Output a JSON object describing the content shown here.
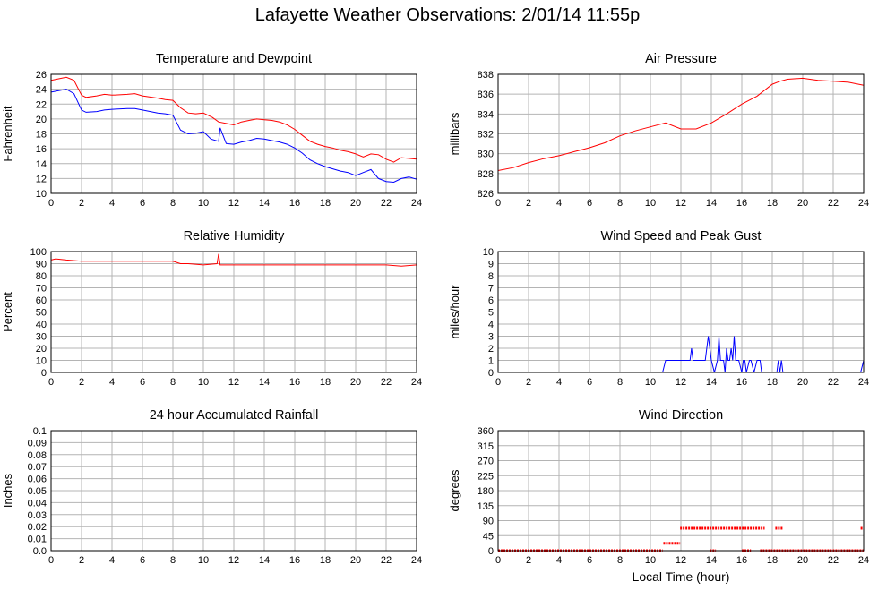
{
  "title": "Lafayette Weather Observations: 2/01/14 11:55p",
  "colors": {
    "red": "#ff0000",
    "blue": "#0000ff",
    "grid": "#b4b4b4",
    "frame": "#000000"
  },
  "chart_data": [
    {
      "id": "temp",
      "type": "line",
      "title": "Temperature and Dewpoint",
      "xlabel": "",
      "ylabel": "Fahrenheit",
      "xlim": [
        0,
        24
      ],
      "ylim": [
        10,
        26
      ],
      "yticks": [
        10,
        12,
        14,
        16,
        18,
        20,
        22,
        24,
        26
      ],
      "xticks": [
        0,
        2,
        4,
        6,
        8,
        10,
        12,
        14,
        16,
        18,
        20,
        22,
        24
      ],
      "series": [
        {
          "color": "#ff0000",
          "x": [
            0,
            0.5,
            1,
            1.5,
            2,
            2.3,
            3,
            3.5,
            4,
            5,
            5.5,
            6,
            7,
            7.5,
            8,
            8.5,
            9,
            9.5,
            10,
            10.6,
            11,
            11.5,
            12,
            12.5,
            13,
            13.5,
            14,
            14.5,
            15,
            15.5,
            16,
            16.5,
            17,
            17.5,
            18,
            18.5,
            19,
            19.5,
            20,
            20.5,
            21,
            21.5,
            22,
            22.5,
            23,
            23.5,
            24
          ],
          "y": [
            25.2,
            25.4,
            25.6,
            25.2,
            23.2,
            22.9,
            23.1,
            23.3,
            23.2,
            23.3,
            23.4,
            23.1,
            22.8,
            22.6,
            22.5,
            21.5,
            20.8,
            20.7,
            20.8,
            20.2,
            19.6,
            19.4,
            19.2,
            19.6,
            19.8,
            20.0,
            19.9,
            19.8,
            19.6,
            19.2,
            18.6,
            17.8,
            17.0,
            16.6,
            16.3,
            16.1,
            15.8,
            15.6,
            15.3,
            14.9,
            15.3,
            15.2,
            14.6,
            14.2,
            14.8,
            14.7,
            14.6
          ]
        },
        {
          "color": "#0000ff",
          "x": [
            0,
            0.5,
            1,
            1.5,
            2,
            2.3,
            3,
            3.5,
            4,
            5,
            5.5,
            6,
            7,
            7.5,
            8,
            8.5,
            9,
            9.5,
            10,
            10.5,
            11,
            11.1,
            11.5,
            12,
            12.5,
            13,
            13.5,
            14,
            14.5,
            15,
            15.5,
            16,
            16.5,
            17,
            17.5,
            18,
            18.5,
            19,
            19.5,
            20,
            20.5,
            21,
            21.5,
            22,
            22.5,
            23,
            23.5,
            24
          ],
          "y": [
            23.6,
            23.8,
            24.0,
            23.4,
            21.2,
            20.9,
            21.0,
            21.2,
            21.3,
            21.4,
            21.4,
            21.2,
            20.8,
            20.7,
            20.5,
            18.5,
            18.0,
            18.1,
            18.3,
            17.3,
            17.0,
            18.8,
            16.7,
            16.6,
            16.9,
            17.1,
            17.4,
            17.3,
            17.1,
            16.9,
            16.6,
            16.1,
            15.4,
            14.5,
            14.0,
            13.6,
            13.3,
            13.0,
            12.8,
            12.4,
            12.8,
            13.2,
            12.0,
            11.6,
            11.5,
            12.0,
            12.2,
            11.9
          ]
        }
      ]
    },
    {
      "id": "pressure",
      "type": "line",
      "title": "Air Pressure",
      "xlabel": "",
      "ylabel": "millibars",
      "xlim": [
        0,
        24
      ],
      "ylim": [
        826,
        838
      ],
      "yticks": [
        826,
        828,
        830,
        832,
        834,
        836,
        838
      ],
      "xticks": [
        0,
        2,
        4,
        6,
        8,
        10,
        12,
        14,
        16,
        18,
        20,
        22,
        24
      ],
      "series": [
        {
          "color": "#ff0000",
          "x": [
            0,
            1,
            2,
            3,
            4,
            5,
            6,
            7,
            8,
            9,
            10,
            11,
            12,
            13,
            14,
            15,
            16,
            17,
            18,
            18.5,
            19,
            20,
            21,
            22,
            23,
            24
          ],
          "y": [
            828.3,
            828.6,
            829.1,
            829.5,
            829.8,
            830.2,
            830.6,
            831.1,
            831.8,
            832.3,
            832.7,
            833.1,
            832.5,
            832.5,
            833.1,
            834.0,
            835.0,
            835.8,
            837.0,
            837.3,
            837.5,
            837.6,
            837.4,
            837.3,
            837.2,
            836.9
          ]
        }
      ]
    },
    {
      "id": "humidity",
      "type": "line",
      "title": "Relative Humidity",
      "xlabel": "",
      "ylabel": "Percent",
      "xlim": [
        0,
        24
      ],
      "ylim": [
        0,
        100
      ],
      "yticks": [
        0,
        10,
        20,
        30,
        40,
        50,
        60,
        70,
        80,
        90,
        100
      ],
      "xticks": [
        0,
        2,
        4,
        6,
        8,
        10,
        12,
        14,
        16,
        18,
        20,
        22,
        24
      ],
      "series": [
        {
          "color": "#ff0000",
          "x": [
            0,
            0.3,
            1,
            2,
            3,
            4,
            5,
            6,
            7,
            8,
            8.5,
            9,
            10,
            10.9,
            11,
            11.1,
            12,
            13,
            14,
            15,
            16,
            17,
            18,
            19,
            20,
            21,
            22,
            23,
            24
          ],
          "y": [
            93,
            94,
            93,
            92,
            92,
            92,
            92,
            92,
            92,
            92,
            90,
            90,
            89,
            90,
            98,
            89,
            89,
            89,
            89,
            89,
            89,
            89,
            89,
            89,
            89,
            89,
            89,
            88,
            89
          ]
        }
      ]
    },
    {
      "id": "wind",
      "type": "line",
      "title": "Wind Speed and Peak Gust",
      "xlabel": "",
      "ylabel": "miles/hour",
      "xlim": [
        0,
        24
      ],
      "ylim": [
        0,
        10
      ],
      "yticks": [
        0,
        1,
        2,
        3,
        4,
        5,
        6,
        7,
        8,
        9,
        10
      ],
      "xticks": [
        0,
        2,
        4,
        6,
        8,
        10,
        12,
        14,
        16,
        18,
        20,
        22,
        24
      ],
      "series": [
        {
          "color": "#0000ff",
          "x": [
            0,
            10.8,
            11,
            12.6,
            12.7,
            12.8,
            13.6,
            13.8,
            14.0,
            14.2,
            14.4,
            14.5,
            14.6,
            14.8,
            14.9,
            15.0,
            15.1,
            15.2,
            15.3,
            15.4,
            15.5,
            15.6,
            15.8,
            16.0,
            16.1,
            16.2,
            16.3,
            16.5,
            16.6,
            16.8,
            17.0,
            17.2,
            17.3,
            17.5,
            18.3,
            18.4,
            18.5,
            18.6,
            18.7,
            23.8,
            24
          ],
          "y": [
            0,
            0,
            1,
            1,
            2,
            1,
            1,
            3,
            1,
            0,
            1,
            3,
            1,
            1,
            0,
            2,
            1,
            1,
            2,
            1,
            3,
            1,
            1,
            0,
            1,
            1,
            0,
            1,
            1,
            0,
            1,
            1,
            0,
            0,
            0,
            1,
            0,
            1,
            0,
            0,
            1
          ]
        }
      ]
    },
    {
      "id": "rain",
      "type": "line",
      "title": "24 hour Accumulated Rainfall",
      "xlabel": "",
      "ylabel": "Inches",
      "xlim": [
        0,
        24
      ],
      "ylim": [
        0,
        0.1
      ],
      "yticks": [
        0.0,
        0.01,
        0.02,
        0.03,
        0.04,
        0.05,
        0.06,
        0.07,
        0.08,
        0.09,
        0.1
      ],
      "ytick_labels": [
        "0.0",
        "0.01",
        "0.02",
        "0.03",
        "0.04",
        "0.05",
        "0.06",
        "0.07",
        "0.08",
        "0.09",
        "0.1"
      ],
      "xticks": [
        0,
        2,
        4,
        6,
        8,
        10,
        12,
        14,
        16,
        18,
        20,
        22,
        24
      ],
      "series": [
        {
          "color": "#ff0000",
          "x": [
            0,
            24
          ],
          "y": [
            0,
            0
          ]
        }
      ]
    },
    {
      "id": "direction",
      "type": "scatter",
      "title": "Wind Direction",
      "xlabel": "Local Time (hour)",
      "ylabel": "degrees",
      "xlim": [
        0,
        24
      ],
      "ylim": [
        0,
        360
      ],
      "yticks": [
        0,
        45,
        90,
        135,
        180,
        225,
        270,
        315,
        360
      ],
      "xticks": [
        0,
        2,
        4,
        6,
        8,
        10,
        12,
        14,
        16,
        18,
        20,
        22,
        24
      ],
      "series": [
        {
          "color": "#ff0000",
          "segments": [
            {
              "x0": 0,
              "x1": 10.8,
              "y": 0
            },
            {
              "x0": 10.85,
              "x1": 11.95,
              "y": 22
            },
            {
              "x0": 11.95,
              "x1": 17.5,
              "y": 67
            },
            {
              "x0": 18.2,
              "x1": 18.7,
              "y": 67
            },
            {
              "x0": 23.8,
              "x1": 24,
              "y": 67
            },
            {
              "x0": 13.9,
              "x1": 14.3,
              "y": 0
            },
            {
              "x0": 16.0,
              "x1": 16.6,
              "y": 0
            },
            {
              "x0": 17.2,
              "x1": 24,
              "y": 0
            }
          ]
        }
      ]
    }
  ]
}
